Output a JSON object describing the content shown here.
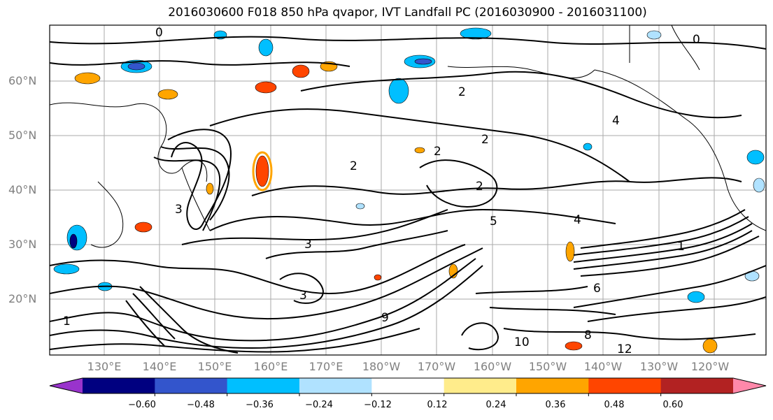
{
  "title": "2016030600 F018 850 hPa qvapor, IVT Landfall PC (2016030900 - 2016031100)",
  "lat_labels": [
    "60°N",
    "50°N",
    "40°N",
    "30°N",
    "20°N"
  ],
  "lon_labels": [
    "130°E",
    "140°E",
    "150°E",
    "160°E",
    "170°E",
    "180°W",
    "170°W",
    "160°W",
    "150°W",
    "140°W",
    "130°W",
    "120°W"
  ],
  "colorbar": {
    "colors": [
      "#9933cc",
      "#000080",
      "#3355cc",
      "#00bfff",
      "#b0e2ff",
      "#ffffff",
      "#ffec8b",
      "#ffa500",
      "#ff4500",
      "#b22222",
      "#ff88aa"
    ],
    "ticks": [
      "−0.60",
      "−0.48",
      "−0.36",
      "−0.24",
      "−0.12",
      "0.12",
      "0.24",
      "0.36",
      "0.48",
      "0.60"
    ]
  },
  "contour_labels": [
    "0",
    "2",
    "2",
    "2",
    "2",
    "2",
    "3",
    "3",
    "3",
    "4",
    "5",
    "1",
    "4",
    "0",
    "6",
    "8",
    "12",
    "10",
    "9",
    "1"
  ]
}
